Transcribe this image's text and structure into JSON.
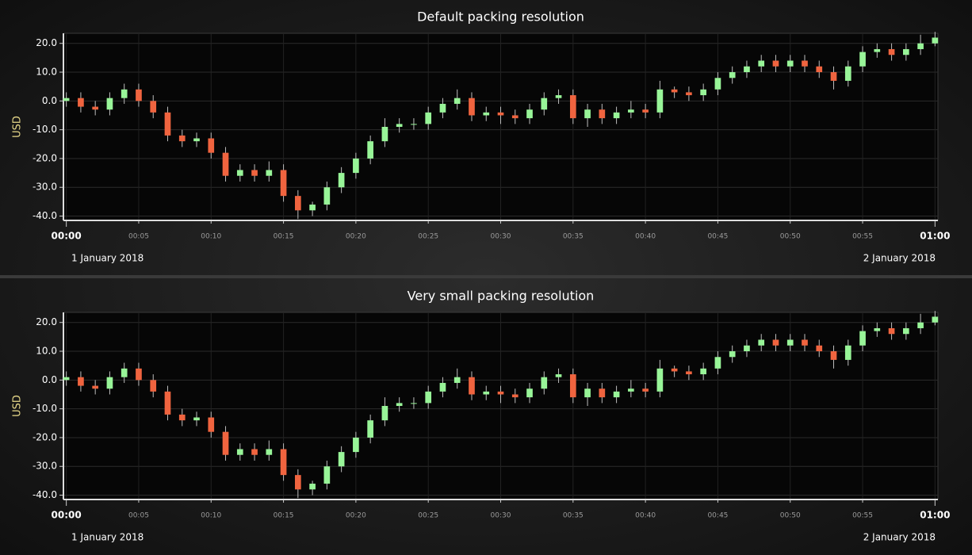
{
  "chart_data": [
    {
      "type": "candlestick",
      "title": "Default packing resolution",
      "ylabel": "USD",
      "up_color": "#98f598",
      "down_color": "#f0643f",
      "x": [
        0,
        1,
        2,
        3,
        4,
        5,
        6,
        7,
        8,
        9,
        10,
        11,
        12,
        13,
        14,
        15,
        16,
        17,
        18,
        19,
        20,
        21,
        22,
        23,
        24,
        25,
        26,
        27,
        28,
        29,
        30,
        31,
        32,
        33,
        34,
        35,
        36,
        37,
        38,
        39,
        40,
        41,
        42,
        43,
        44,
        45,
        46,
        47,
        48,
        49,
        50,
        51,
        52,
        53,
        54,
        55,
        56,
        57,
        58,
        59,
        60
      ],
      "open": [
        0,
        1,
        -2,
        -3,
        1,
        4,
        0,
        -4,
        -12,
        -14,
        -13,
        -18,
        -26,
        -24,
        -26,
        -24,
        -33,
        -38,
        -36,
        -30,
        -25,
        -20,
        -14,
        -9,
        -8,
        -8,
        -4,
        -1,
        1,
        -5,
        -4,
        -5,
        -6,
        -3,
        1,
        2,
        -6,
        -3,
        -6,
        -4,
        -3,
        -4,
        4,
        3,
        2,
        4,
        8,
        10,
        12,
        14,
        12,
        14,
        12,
        10,
        7,
        12,
        17,
        18,
        16,
        18,
        20
      ],
      "high": [
        3,
        3,
        0,
        3,
        6,
        6,
        2,
        -2,
        -10,
        -11,
        -11,
        -16,
        -22,
        -22,
        -21,
        -22,
        -31,
        -35,
        -28,
        -23,
        -18,
        -12,
        -6,
        -6,
        -6,
        -2,
        1,
        4,
        3,
        -2,
        -2,
        -3,
        -1,
        3,
        4,
        4,
        -1,
        -1,
        -2,
        0,
        -1,
        7,
        5,
        5,
        6,
        10,
        12,
        14,
        16,
        16,
        16,
        16,
        14,
        12,
        14,
        19,
        20,
        20,
        20,
        23,
        24
      ],
      "low": [
        -2,
        -4,
        -5,
        -5,
        -1,
        -2,
        -6,
        -14,
        -16,
        -16,
        -20,
        -28,
        -28,
        -28,
        -28,
        -35,
        -41,
        -40,
        -38,
        -32,
        -27,
        -22,
        -16,
        -11,
        -10,
        -10,
        -6,
        -3,
        -7,
        -7,
        -8,
        -8,
        -8,
        -5,
        -1,
        -8,
        -9,
        -8,
        -8,
        -6,
        -6,
        -6,
        1,
        0,
        0,
        2,
        6,
        8,
        10,
        10,
        10,
        10,
        8,
        4,
        5,
        10,
        15,
        14,
        14,
        16,
        19
      ],
      "close": [
        1,
        -2,
        -3,
        1,
        4,
        0,
        -4,
        -12,
        -14,
        -13,
        -18,
        -26,
        -24,
        -26,
        -24,
        -33,
        -38,
        -36,
        -30,
        -25,
        -20,
        -14,
        -9,
        -8,
        -8,
        -4,
        -1,
        1,
        -5,
        -4,
        -5,
        -6,
        -3,
        1,
        2,
        -6,
        -3,
        -6,
        -4,
        -3,
        -4,
        4,
        3,
        2,
        4,
        8,
        10,
        12,
        14,
        12,
        14,
        12,
        10,
        7,
        12,
        17,
        18,
        16,
        18,
        20,
        22
      ],
      "xlim": [
        -0.2,
        60.2
      ],
      "xticks": [
        {
          "value": 0,
          "label": "00:00"
        },
        {
          "value": 5,
          "label": "00:05"
        },
        {
          "value": 10,
          "label": "00:10"
        },
        {
          "value": 15,
          "label": "00:15"
        },
        {
          "value": 20,
          "label": "00:20"
        },
        {
          "value": 25,
          "label": "00:25"
        },
        {
          "value": 30,
          "label": "00:30"
        },
        {
          "value": 35,
          "label": "00:35"
        },
        {
          "value": 40,
          "label": "00:40"
        },
        {
          "value": 45,
          "label": "00:45"
        },
        {
          "value": 50,
          "label": "00:50"
        },
        {
          "value": 55,
          "label": "00:55"
        },
        {
          "value": 60,
          "label": "01:00"
        }
      ],
      "date_labels": [
        "1 January 2018",
        "2 January 2018"
      ],
      "ylim": [
        -41.5,
        23.5
      ],
      "yticks": [
        {
          "value": -40,
          "label": "-40.0"
        },
        {
          "value": -30,
          "label": "-30.0"
        },
        {
          "value": -20,
          "label": "-20.0"
        },
        {
          "value": -10,
          "label": "-10.0"
        },
        {
          "value": 0,
          "label": "0.0"
        },
        {
          "value": 10,
          "label": "10.0"
        },
        {
          "value": 20,
          "label": "20.0"
        }
      ],
      "grid": true
    },
    {
      "type": "candlestick",
      "title": "Very small packing resolution",
      "ylabel": "USD",
      "up_color": "#98f598",
      "down_color": "#f0643f",
      "x": [
        0,
        1,
        2,
        3,
        4,
        5,
        6,
        7,
        8,
        9,
        10,
        11,
        12,
        13,
        14,
        15,
        16,
        17,
        18,
        19,
        20,
        21,
        22,
        23,
        24,
        25,
        26,
        27,
        28,
        29,
        30,
        31,
        32,
        33,
        34,
        35,
        36,
        37,
        38,
        39,
        40,
        41,
        42,
        43,
        44,
        45,
        46,
        47,
        48,
        49,
        50,
        51,
        52,
        53,
        54,
        55,
        56,
        57,
        58,
        59,
        60
      ],
      "open": [
        0,
        1,
        -2,
        -3,
        1,
        4,
        0,
        -4,
        -12,
        -14,
        -13,
        -18,
        -26,
        -24,
        -26,
        -24,
        -33,
        -38,
        -36,
        -30,
        -25,
        -20,
        -14,
        -9,
        -8,
        -8,
        -4,
        -1,
        1,
        -5,
        -4,
        -5,
        -6,
        -3,
        1,
        2,
        -6,
        -3,
        -6,
        -4,
        -3,
        -4,
        4,
        3,
        2,
        4,
        8,
        10,
        12,
        14,
        12,
        14,
        12,
        10,
        7,
        12,
        17,
        18,
        16,
        18,
        20
      ],
      "high": [
        3,
        3,
        0,
        3,
        6,
        6,
        2,
        -2,
        -10,
        -11,
        -11,
        -16,
        -22,
        -22,
        -21,
        -22,
        -31,
        -35,
        -28,
        -23,
        -18,
        -12,
        -6,
        -6,
        -6,
        -2,
        1,
        4,
        3,
        -2,
        -2,
        -3,
        -1,
        3,
        4,
        4,
        -1,
        -1,
        -2,
        0,
        -1,
        7,
        5,
        5,
        6,
        10,
        12,
        14,
        16,
        16,
        16,
        16,
        14,
        12,
        14,
        19,
        20,
        20,
        20,
        23,
        24
      ],
      "low": [
        -2,
        -4,
        -5,
        -5,
        -1,
        -2,
        -6,
        -14,
        -16,
        -16,
        -20,
        -28,
        -28,
        -28,
        -28,
        -35,
        -41,
        -40,
        -38,
        -32,
        -27,
        -22,
        -16,
        -11,
        -10,
        -10,
        -6,
        -3,
        -7,
        -7,
        -8,
        -8,
        -8,
        -5,
        -1,
        -8,
        -9,
        -8,
        -8,
        -6,
        -6,
        -6,
        1,
        0,
        0,
        2,
        6,
        8,
        10,
        10,
        10,
        10,
        8,
        4,
        5,
        10,
        15,
        14,
        14,
        16,
        19
      ],
      "close": [
        1,
        -2,
        -3,
        1,
        4,
        0,
        -4,
        -12,
        -14,
        -13,
        -18,
        -26,
        -24,
        -26,
        -24,
        -33,
        -38,
        -36,
        -30,
        -25,
        -20,
        -14,
        -9,
        -8,
        -8,
        -4,
        -1,
        1,
        -5,
        -4,
        -5,
        -6,
        -3,
        1,
        2,
        -6,
        -3,
        -6,
        -4,
        -3,
        -4,
        4,
        3,
        2,
        4,
        8,
        10,
        12,
        14,
        12,
        14,
        12,
        10,
        7,
        12,
        17,
        18,
        16,
        18,
        20,
        22
      ],
      "xlim": [
        -0.2,
        60.2
      ],
      "xticks": [
        {
          "value": 0,
          "label": "00:00"
        },
        {
          "value": 5,
          "label": "00:05"
        },
        {
          "value": 10,
          "label": "00:10"
        },
        {
          "value": 15,
          "label": "00:15"
        },
        {
          "value": 20,
          "label": "00:20"
        },
        {
          "value": 25,
          "label": "00:25"
        },
        {
          "value": 30,
          "label": "00:30"
        },
        {
          "value": 35,
          "label": "00:35"
        },
        {
          "value": 40,
          "label": "00:40"
        },
        {
          "value": 45,
          "label": "00:45"
        },
        {
          "value": 50,
          "label": "00:50"
        },
        {
          "value": 55,
          "label": "00:55"
        },
        {
          "value": 60,
          "label": "01:00"
        }
      ],
      "date_labels": [
        "1 January 2018",
        "2 January 2018"
      ],
      "ylim": [
        -41.5,
        23.5
      ],
      "yticks": [
        {
          "value": -40,
          "label": "-40.0"
        },
        {
          "value": -30,
          "label": "-30.0"
        },
        {
          "value": -20,
          "label": "-20.0"
        },
        {
          "value": -10,
          "label": "-10.0"
        },
        {
          "value": 0,
          "label": "0.0"
        },
        {
          "value": 10,
          "label": "10.0"
        },
        {
          "value": 20,
          "label": "20.0"
        }
      ],
      "grid": true
    }
  ]
}
